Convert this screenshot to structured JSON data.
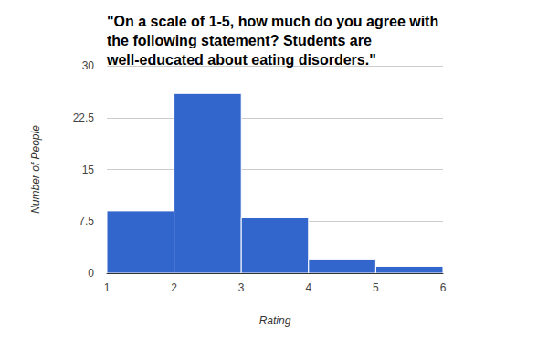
{
  "chart_data": {
    "type": "histogram",
    "title": "\"On a scale of 1-5, how much do you agree with the following statement? Students are well-educated about eating disorders.\"",
    "x_label": "Rating",
    "y_label": "Number of People",
    "bins": [
      1,
      2,
      3,
      4,
      5,
      6
    ],
    "counts": [
      9,
      26,
      8,
      2,
      1
    ],
    "color": "#3366cc",
    "xlim": [
      1,
      6
    ],
    "xticks": [
      1,
      2,
      3,
      4,
      5,
      6
    ],
    "ylim": [
      0,
      30
    ],
    "yticks": [
      0,
      7.5,
      15,
      22.5,
      30
    ],
    "grid": true
  }
}
